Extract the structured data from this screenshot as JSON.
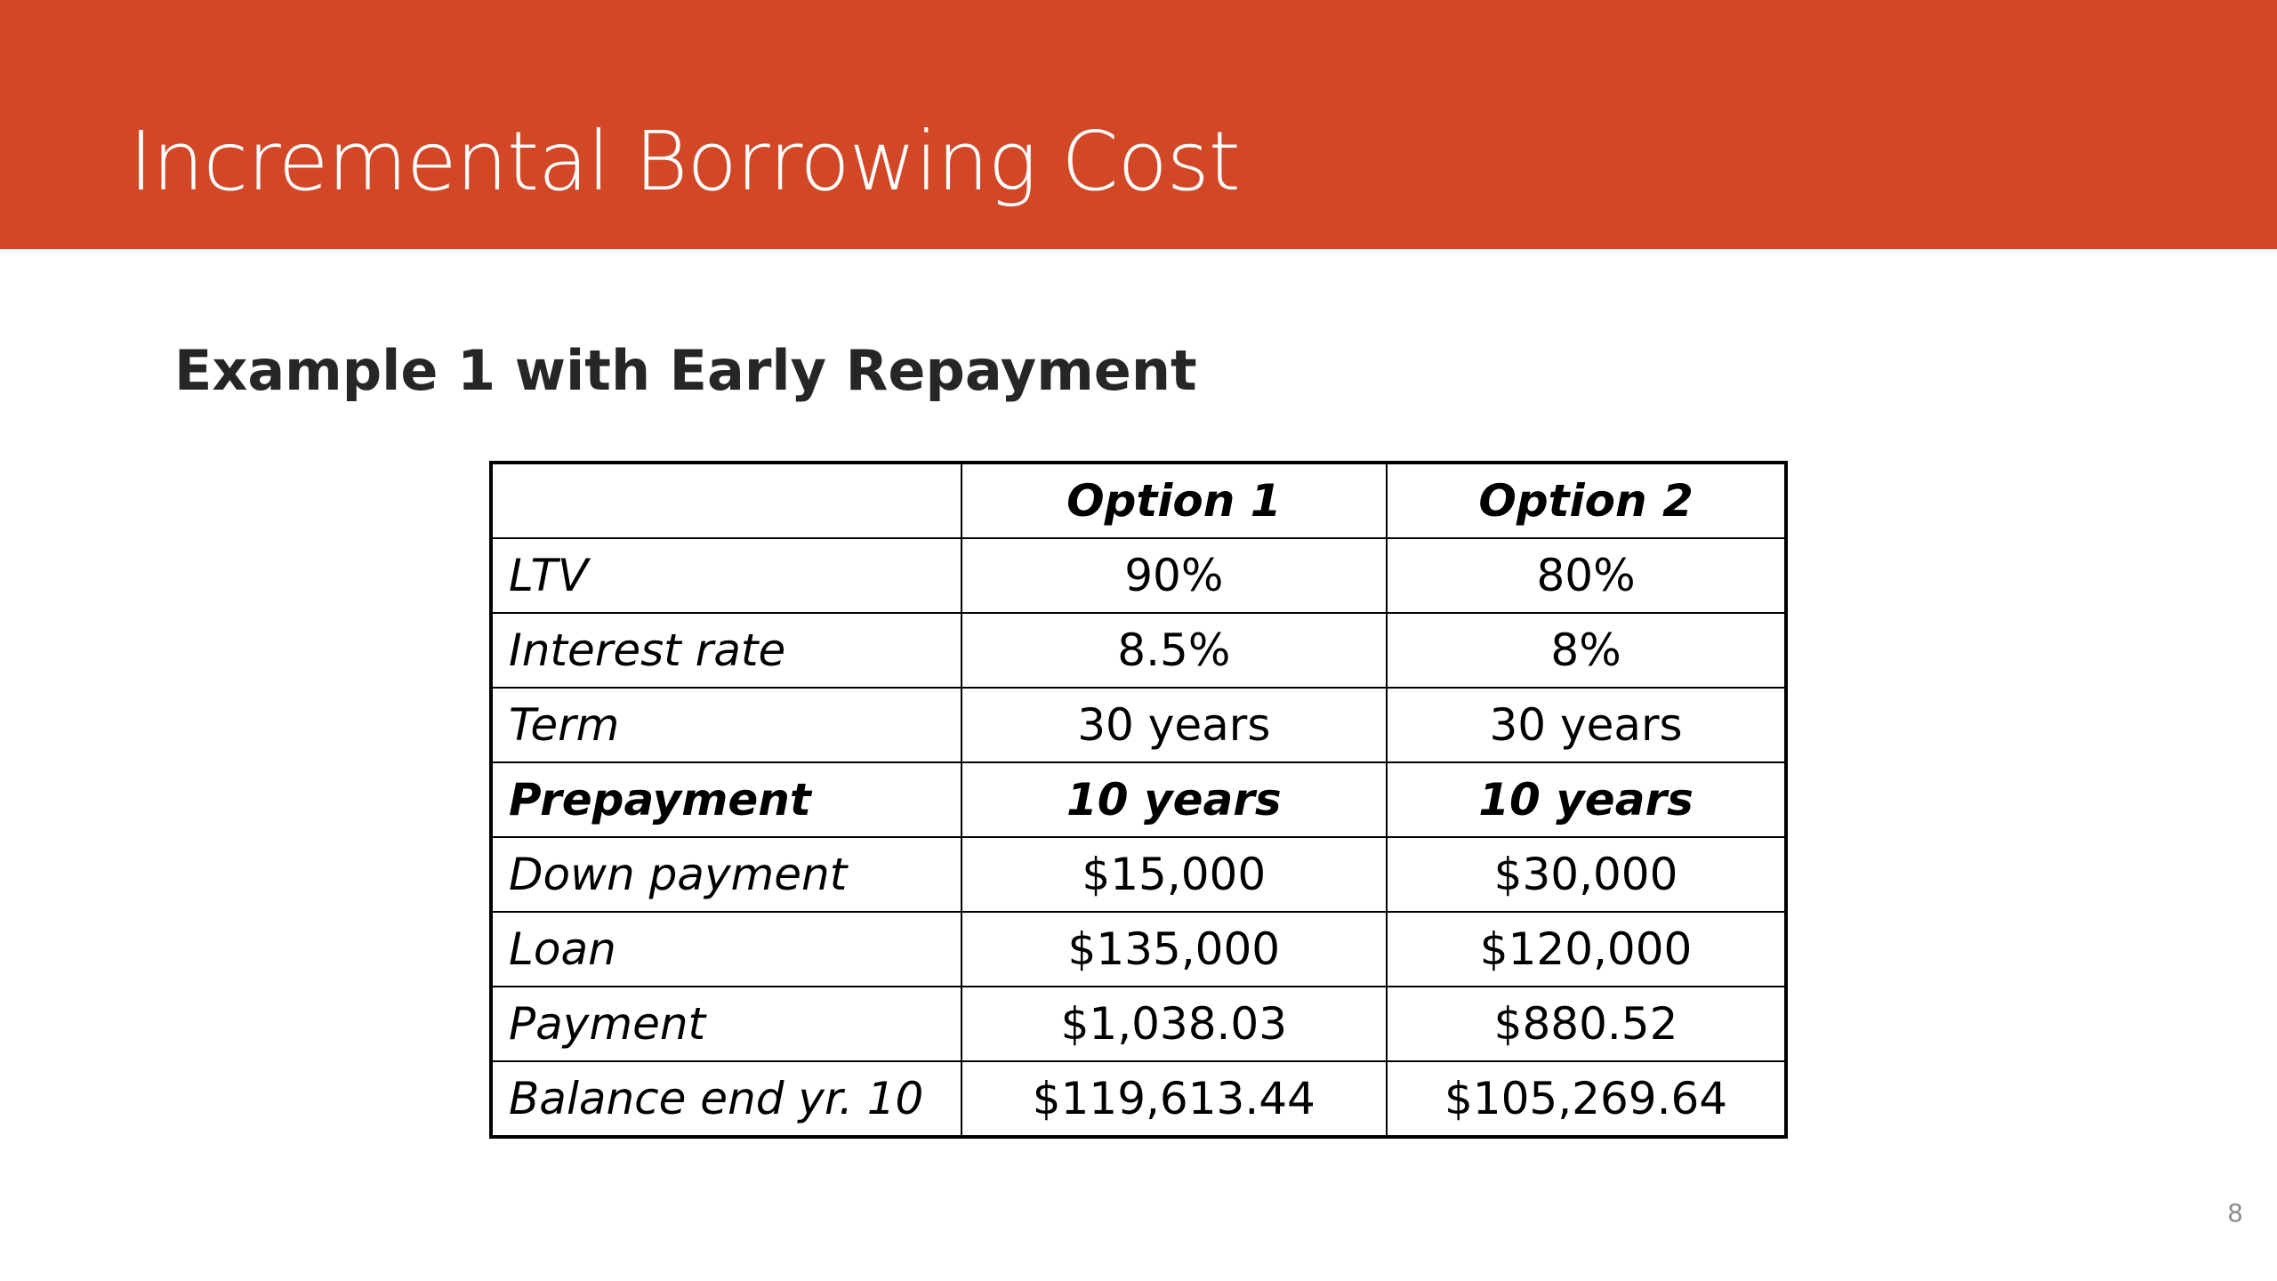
{
  "slide": {
    "title": "Incremental Borrowing Cost",
    "subtitle": "Example 1 with Early Repayment",
    "page_number": "8",
    "accent_color": "#d24726"
  },
  "table": {
    "headers": [
      "",
      "Option 1",
      "Option 2"
    ],
    "rows": [
      {
        "label": "LTV",
        "option1": "90%",
        "option2": "80%"
      },
      {
        "label": "Interest rate",
        "option1": "8.5%",
        "option2": "8%"
      },
      {
        "label": "Term",
        "option1": "30 years",
        "option2": "30 years"
      },
      {
        "label": "Prepayment",
        "option1": "10 years",
        "option2": "10 years"
      },
      {
        "label": "Down payment",
        "option1": "$15,000",
        "option2": "$30,000"
      },
      {
        "label": "Loan",
        "option1": "$135,000",
        "option2": "$120,000"
      },
      {
        "label": "Payment",
        "option1": "$1,038.03",
        "option2": "$880.52"
      },
      {
        "label": "Balance end yr. 10",
        "option1": "$119,613.44",
        "option2": "$105,269.64"
      }
    ]
  }
}
